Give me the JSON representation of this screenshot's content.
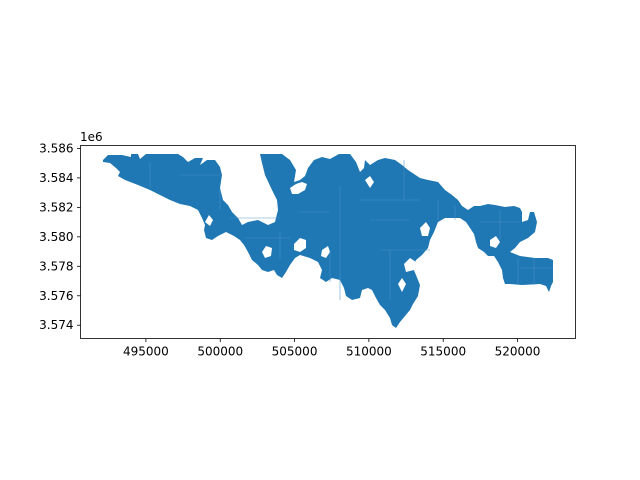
{
  "chart_data": {
    "type": "map",
    "description_note": "",
    "fill_color": "#1f77b4",
    "edge_color": "#4a90c8",
    "background_color": "#ffffff",
    "x_ticks": [
      {
        "value": 495000,
        "label": "495000"
      },
      {
        "value": 500000,
        "label": "500000"
      },
      {
        "value": 505000,
        "label": "505000"
      },
      {
        "value": 510000,
        "label": "510000"
      },
      {
        "value": 515000,
        "label": "515000"
      },
      {
        "value": 520000,
        "label": "520000"
      }
    ],
    "y_ticks": [
      {
        "value": 3574000,
        "label": "3.574"
      },
      {
        "value": 3576000,
        "label": "3.576"
      },
      {
        "value": 3578000,
        "label": "3.578"
      },
      {
        "value": 3580000,
        "label": "3.580"
      },
      {
        "value": 3582000,
        "label": "3.582"
      },
      {
        "value": 3584000,
        "label": "3.584"
      },
      {
        "value": 3586000,
        "label": "3.586"
      }
    ],
    "y_offset_label": "1e6",
    "xlim": [
      490600,
      523900
    ],
    "ylim": [
      3573100,
      3586200
    ],
    "grid": false,
    "legend": "none",
    "title": "",
    "xlabel": "",
    "ylabel": ""
  }
}
